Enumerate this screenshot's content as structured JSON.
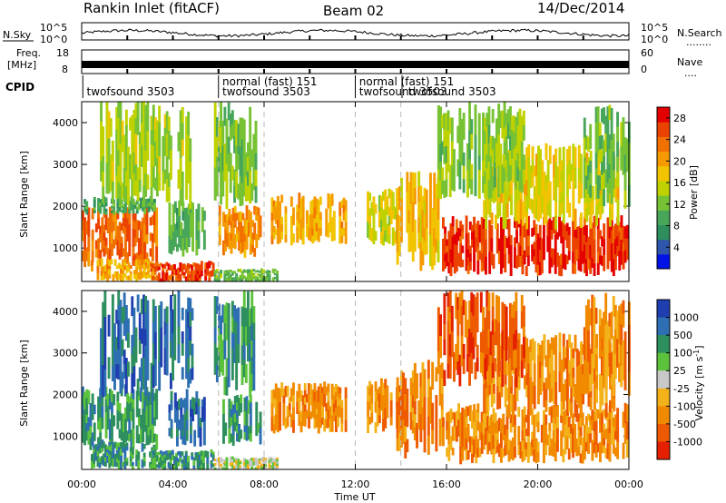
{
  "header": {
    "station": "Rankin Inlet (fitACF)",
    "beam": "Beam 02",
    "date": "14/Dec/2014"
  },
  "sky_panel": {
    "left_label": "N.Sky",
    "right_label": "N.Search",
    "right_dots": "........",
    "left_ticks": [
      "10^5",
      "10^0"
    ],
    "right_ticks": [
      "10^5",
      "10^0"
    ]
  },
  "freq_panel": {
    "left_label_1": "Freq.",
    "left_label_2": "[MHz]",
    "right_label": "Nave",
    "right_dots": "....",
    "left_ticks": [
      "18",
      "8"
    ],
    "right_ticks": [
      "60",
      "0"
    ]
  },
  "cpid_panel": {
    "label": "CPID",
    "entries": [
      {
        "text": "twofsound 3503",
        "start_hour": 0.1,
        "row": 2
      },
      {
        "text": "normal (fast) 151",
        "start_hour": 6.05,
        "row": 1
      },
      {
        "text": "twofsound 3503",
        "start_hour": 6.05,
        "row": 2
      },
      {
        "text": "normal (fast) 151",
        "start_hour": 12.05,
        "row": 1
      },
      {
        "text": "twofsound 3503",
        "start_hour": 12.05,
        "row": 2
      },
      {
        "text": "twofsound 3503",
        "start_hour": 14.2,
        "row": 2
      }
    ],
    "dividers_hours": [
      0.05,
      6.0,
      12.0,
      14.05
    ]
  },
  "colors": {
    "dashed_lines": "#b8b8b8",
    "ground_gray": "#b4b4b4"
  },
  "chart_data": [
    {
      "type": "heatmap",
      "name": "power",
      "ylabel": "Slant Range [km]",
      "yticks": [
        "1000",
        "2000",
        "3000",
        "4000"
      ],
      "ylim": [
        200,
        4500
      ],
      "xlim_hours": [
        0,
        24
      ],
      "colorbar": {
        "label": "Power [dB]",
        "ticks": [
          "4",
          "8",
          "12",
          "16",
          "20",
          "24",
          "28"
        ],
        "tick_values": [
          4,
          8,
          12,
          16,
          20,
          24,
          28
        ],
        "range": [
          0,
          30
        ],
        "colors": [
          "#0012e6",
          "#2f55ab",
          "#2e8f5e",
          "#47a65a",
          "#77c234",
          "#bfd200",
          "#f2c400",
          "#f59a00",
          "#f27000",
          "#ec4200",
          "#e40000"
        ]
      },
      "regions": [
        {
          "t0": 0.0,
          "t1": 3.3,
          "r0": 700,
          "r1": 1850,
          "v": 25
        },
        {
          "t0": 0.0,
          "t1": 3.2,
          "r0": 1850,
          "r1": 2200,
          "v": 9
        },
        {
          "t0": 0.4,
          "t1": 3.2,
          "r0": 250,
          "r1": 700,
          "v": 20
        },
        {
          "t0": 3.0,
          "t1": 5.8,
          "r0": 200,
          "r1": 650,
          "v": 27
        },
        {
          "t0": 5.8,
          "t1": 8.6,
          "r0": 200,
          "r1": 480,
          "v": 11
        },
        {
          "t0": 3.8,
          "t1": 5.4,
          "r0": 900,
          "r1": 2000,
          "v": 10
        },
        {
          "t0": 6.0,
          "t1": 7.8,
          "r0": 900,
          "r1": 1900,
          "v": 22
        },
        {
          "t0": 8.3,
          "t1": 11.6,
          "r0": 1200,
          "r1": 2200,
          "v": 20
        },
        {
          "t0": 12.5,
          "t1": 13.9,
          "r0": 1200,
          "r1": 2300,
          "v": 16
        },
        {
          "t0": 13.8,
          "t1": 15.8,
          "r0": 700,
          "r1": 2600,
          "v": 19
        },
        {
          "t0": 15.8,
          "t1": 23.9,
          "r0": 480,
          "r1": 1650,
          "v": 28
        },
        {
          "t0": 17.6,
          "t1": 23.5,
          "r0": 1650,
          "r1": 3300,
          "v": 17
        },
        {
          "t0": 15.6,
          "t1": 19.4,
          "r0": 2400,
          "r1": 4300,
          "v": 13
        },
        {
          "t0": 22.0,
          "t1": 24.0,
          "r0": 2200,
          "r1": 4200,
          "v": 12
        },
        {
          "t0": 0.8,
          "t1": 4.8,
          "r0": 2200,
          "r1": 4300,
          "v": 14
        },
        {
          "t0": 5.8,
          "t1": 7.6,
          "r0": 2200,
          "r1": 4300,
          "v": 12
        }
      ]
    },
    {
      "type": "heatmap",
      "name": "velocity",
      "ylabel": "Slant Range [km]",
      "yticks": [
        "1000",
        "2000",
        "3000",
        "4000"
      ],
      "ylim": [
        200,
        4500
      ],
      "xlim_hours": [
        0,
        24
      ],
      "xticks": [
        "00:00",
        "04:00",
        "08:00",
        "12:00",
        "16:00",
        "20:00",
        "00:00"
      ],
      "xlabel": "Time UT",
      "colorbar": {
        "label": "Velocity [m s^-1]",
        "ticks": [
          "1000",
          "500",
          "100",
          "25",
          "-25",
          "-100",
          "-500",
          "-1000"
        ],
        "colors": [
          "#1f3fb0",
          "#2d6fb2",
          "#2e8f5e",
          "#5cc23c",
          "#c8c8c8",
          "#f4b21a",
          "#f28a00",
          "#ee5a00",
          "#e42000"
        ]
      },
      "regions": [
        {
          "t0": 0.0,
          "t1": 3.3,
          "r0": 800,
          "r1": 2100,
          "v": 2
        },
        {
          "t0": 0.4,
          "t1": 3.2,
          "r0": 250,
          "r1": 800,
          "v": 2
        },
        {
          "t0": 3.0,
          "t1": 5.8,
          "r0": 200,
          "r1": 650,
          "v": 2
        },
        {
          "t0": 5.8,
          "t1": 8.6,
          "r0": 200,
          "r1": 480,
          "v": 4
        },
        {
          "t0": 3.8,
          "t1": 5.4,
          "r0": 900,
          "r1": 2000,
          "v": 1
        },
        {
          "t0": 6.0,
          "t1": 7.8,
          "r0": 900,
          "r1": 1900,
          "v": 2
        },
        {
          "t0": 8.3,
          "t1": 11.6,
          "r0": 1200,
          "r1": 2200,
          "v": 6
        },
        {
          "t0": 12.5,
          "t1": 13.9,
          "r0": 1200,
          "r1": 2300,
          "v": 6
        },
        {
          "t0": 13.8,
          "t1": 15.8,
          "r0": 700,
          "r1": 2600,
          "v": 6
        },
        {
          "t0": 15.8,
          "t1": 23.9,
          "r0": 480,
          "r1": 1650,
          "v": 6
        },
        {
          "t0": 17.6,
          "t1": 23.5,
          "r0": 1650,
          "r1": 3300,
          "v": 6
        },
        {
          "t0": 15.6,
          "t1": 19.4,
          "r0": 2400,
          "r1": 4300,
          "v": 7
        },
        {
          "t0": 22.0,
          "t1": 24.0,
          "r0": 2200,
          "r1": 4200,
          "v": 6
        },
        {
          "t0": 0.8,
          "t1": 4.8,
          "r0": 2200,
          "r1": 4300,
          "v": 1
        },
        {
          "t0": 5.8,
          "t1": 7.6,
          "r0": 2200,
          "r1": 4300,
          "v": 2
        }
      ]
    }
  ]
}
